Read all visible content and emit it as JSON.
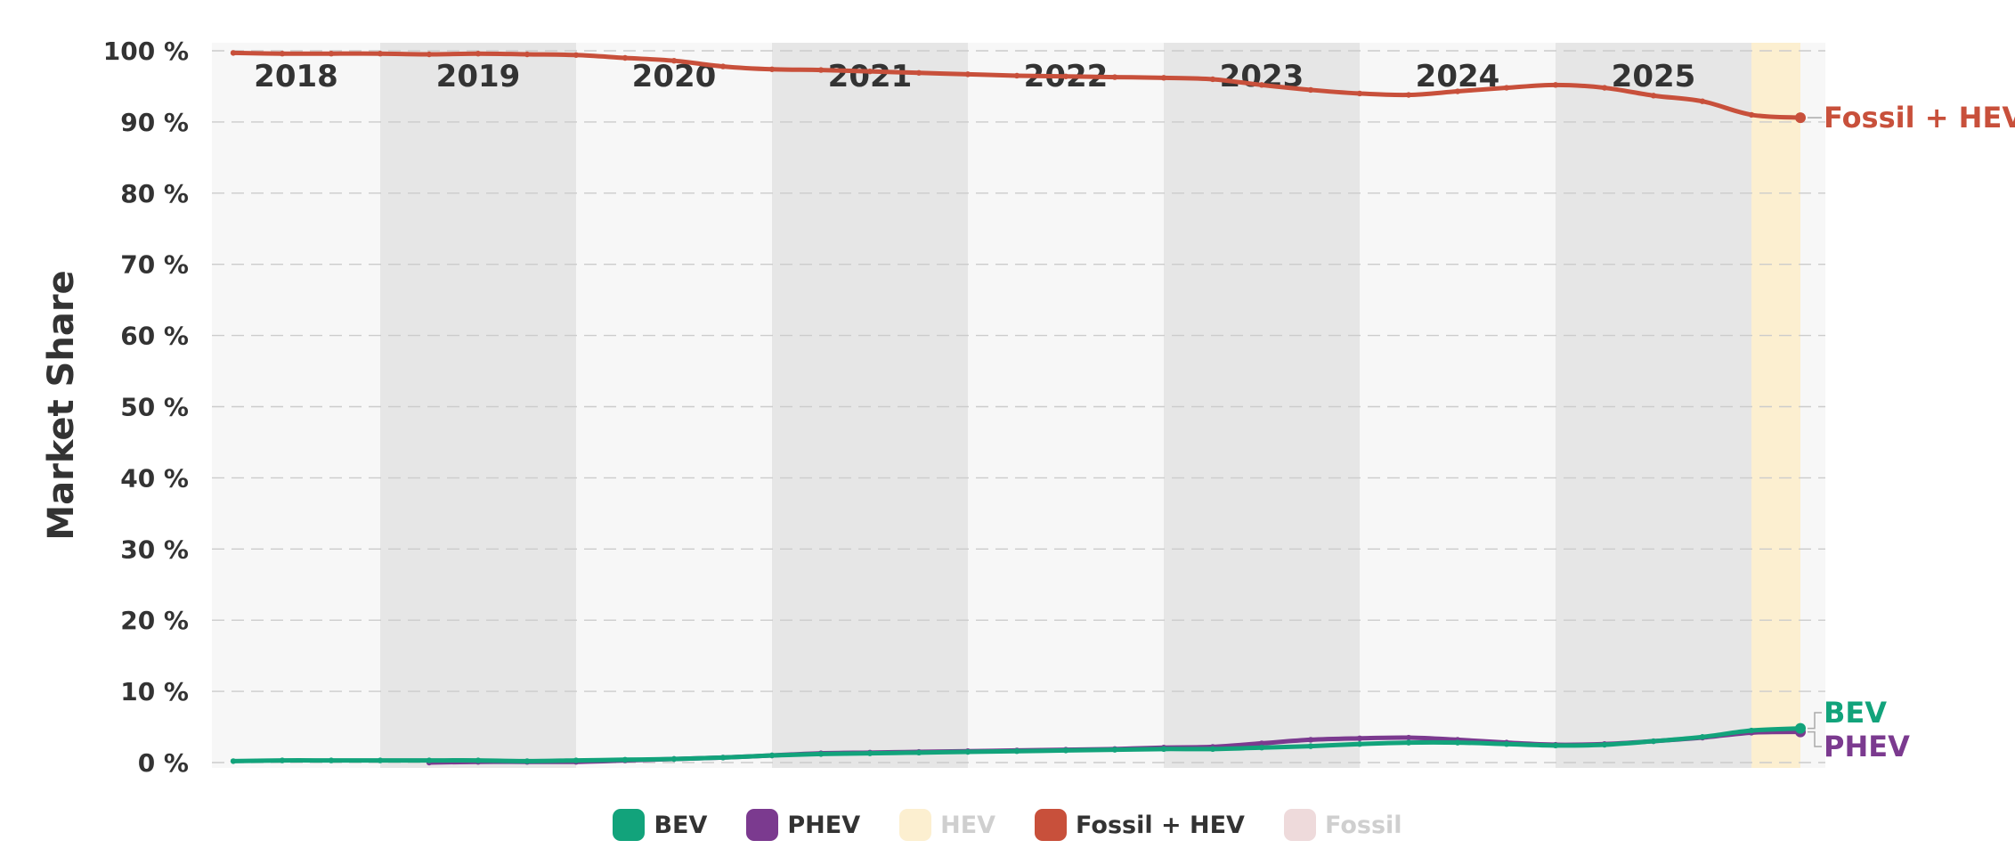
{
  "chart_data": {
    "type": "line",
    "ylabel": "Market Share",
    "ylim": [
      0,
      100
    ],
    "y_ticks": [
      "0 %",
      "10 %",
      "20 %",
      "30 %",
      "40 %",
      "50 %",
      "60 %",
      "70 %",
      "80 %",
      "90 %",
      "100 %"
    ],
    "grid": true,
    "year_bands": [
      "2018",
      "2019",
      "2020",
      "2021",
      "2022",
      "2023",
      "2024",
      "2025"
    ],
    "x_range": [
      2018.0,
      2026.0
    ],
    "highlight_period": [
      2025.75,
      2026.0
    ],
    "series": [
      {
        "name": "BEV",
        "color": "#12a37b",
        "end_label": "BEV",
        "points": [
          [
            2018.0,
            0.2
          ],
          [
            2018.25,
            0.3
          ],
          [
            2018.5,
            0.3
          ],
          [
            2018.75,
            0.3
          ],
          [
            2019.0,
            0.3
          ],
          [
            2019.25,
            0.3
          ],
          [
            2019.5,
            0.2
          ],
          [
            2019.75,
            0.3
          ],
          [
            2020.0,
            0.4
          ],
          [
            2020.25,
            0.5
          ],
          [
            2020.5,
            0.7
          ],
          [
            2020.75,
            1.0
          ],
          [
            2021.0,
            1.2
          ],
          [
            2021.25,
            1.3
          ],
          [
            2021.5,
            1.4
          ],
          [
            2021.75,
            1.5
          ],
          [
            2022.0,
            1.6
          ],
          [
            2022.25,
            1.7
          ],
          [
            2022.5,
            1.8
          ],
          [
            2022.75,
            1.9
          ],
          [
            2023.0,
            1.9
          ],
          [
            2023.25,
            2.1
          ],
          [
            2023.5,
            2.3
          ],
          [
            2023.75,
            2.6
          ],
          [
            2024.0,
            2.8
          ],
          [
            2024.25,
            2.8
          ],
          [
            2024.5,
            2.6
          ],
          [
            2024.75,
            2.4
          ],
          [
            2025.0,
            2.5
          ],
          [
            2025.25,
            3.0
          ],
          [
            2025.5,
            3.6
          ],
          [
            2025.75,
            4.5
          ],
          [
            2026.0,
            4.8
          ]
        ]
      },
      {
        "name": "PHEV",
        "color": "#7b3a8f",
        "end_label": "PHEV",
        "points": [
          [
            2019.0,
            0.0
          ],
          [
            2019.25,
            0.1
          ],
          [
            2019.5,
            0.1
          ],
          [
            2019.75,
            0.1
          ],
          [
            2020.0,
            0.3
          ],
          [
            2020.25,
            0.5
          ],
          [
            2020.5,
            0.7
          ],
          [
            2020.75,
            1.0
          ],
          [
            2021.0,
            1.3
          ],
          [
            2021.25,
            1.4
          ],
          [
            2021.5,
            1.5
          ],
          [
            2021.75,
            1.6
          ],
          [
            2022.0,
            1.7
          ],
          [
            2022.25,
            1.8
          ],
          [
            2022.5,
            1.9
          ],
          [
            2022.75,
            2.1
          ],
          [
            2023.0,
            2.2
          ],
          [
            2023.25,
            2.7
          ],
          [
            2023.5,
            3.2
          ],
          [
            2023.75,
            3.4
          ],
          [
            2024.0,
            3.5
          ],
          [
            2024.25,
            3.2
          ],
          [
            2024.5,
            2.8
          ],
          [
            2024.75,
            2.5
          ],
          [
            2025.0,
            2.6
          ],
          [
            2025.25,
            3.0
          ],
          [
            2025.5,
            3.5
          ],
          [
            2025.75,
            4.2
          ],
          [
            2026.0,
            4.3
          ]
        ]
      },
      {
        "name": "Fossil + HEV",
        "color": "#c8503b",
        "end_label": "Fossil + HEV",
        "points": [
          [
            2018.0,
            99.7
          ],
          [
            2018.25,
            99.6
          ],
          [
            2018.5,
            99.6
          ],
          [
            2018.75,
            99.6
          ],
          [
            2019.0,
            99.5
          ],
          [
            2019.25,
            99.6
          ],
          [
            2019.5,
            99.5
          ],
          [
            2019.75,
            99.4
          ],
          [
            2020.0,
            99.0
          ],
          [
            2020.25,
            98.6
          ],
          [
            2020.5,
            97.8
          ],
          [
            2020.75,
            97.4
          ],
          [
            2021.0,
            97.3
          ],
          [
            2021.25,
            97.1
          ],
          [
            2021.5,
            96.9
          ],
          [
            2021.75,
            96.7
          ],
          [
            2022.0,
            96.5
          ],
          [
            2022.25,
            96.4
          ],
          [
            2022.5,
            96.3
          ],
          [
            2022.75,
            96.2
          ],
          [
            2023.0,
            96.0
          ],
          [
            2023.25,
            95.2
          ],
          [
            2023.5,
            94.5
          ],
          [
            2023.75,
            94.0
          ],
          [
            2024.0,
            93.8
          ],
          [
            2024.25,
            94.3
          ],
          [
            2024.5,
            94.8
          ],
          [
            2024.75,
            95.2
          ],
          [
            2025.0,
            94.8
          ],
          [
            2025.25,
            93.7
          ],
          [
            2025.5,
            92.9
          ],
          [
            2025.75,
            91.0
          ],
          [
            2026.0,
            90.6
          ]
        ]
      }
    ],
    "legend": [
      {
        "name": "BEV",
        "color": "#12a37b",
        "active": true
      },
      {
        "name": "PHEV",
        "color": "#7b3a8f",
        "active": true
      },
      {
        "name": "HEV",
        "color": "#fcefd0",
        "active": false
      },
      {
        "name": "Fossil + HEV",
        "color": "#c8503b",
        "active": true
      },
      {
        "name": "Fossil",
        "color": "#eedadb",
        "active": false
      }
    ],
    "colors": {
      "band_light": "#f7f7f7",
      "band_dark": "#e6e6e6",
      "highlight": "#fcefd0",
      "grid": "#cccccc",
      "text": "#333333"
    }
  }
}
